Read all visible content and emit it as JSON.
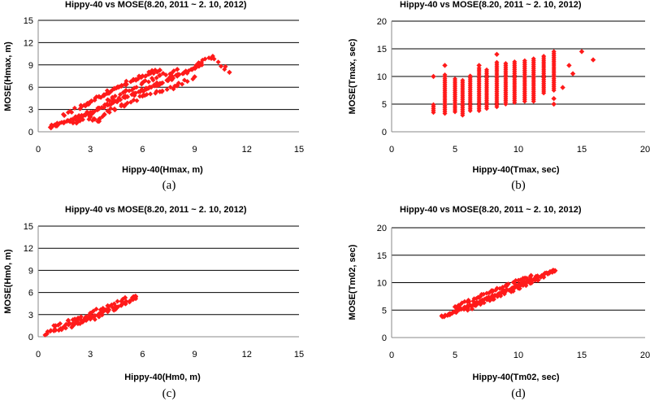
{
  "figure": {
    "captions": [
      "(a)",
      "(b)",
      "(c)",
      "(d)"
    ]
  },
  "colors": {
    "marker": "#ff1a1a",
    "grid": "#000000",
    "axis": "#888888"
  },
  "chart_data": [
    {
      "type": "scatter",
      "title": "Hippy-40 vs MOSE(8.20, 2011 ~ 2. 10, 2012)",
      "xlabel": "Hippy-40(Hmax, m)",
      "ylabel": "MOSE(Hmax, m)",
      "xlim": [
        0,
        15
      ],
      "ylim": [
        0,
        15
      ],
      "xticks": [
        0,
        3,
        6,
        9,
        12,
        15
      ],
      "yticks": [
        0,
        3,
        6,
        9,
        12,
        15
      ],
      "grid": "horizontal",
      "series": [
        {
          "marker": "diamond",
          "points": [
            [
              0.7,
              0.6
            ],
            [
              1,
              0.9
            ],
            [
              1.5,
              1.3
            ],
            [
              2,
              1.7
            ],
            [
              2.5,
              2.2
            ],
            [
              3,
              2.6
            ],
            [
              3.5,
              3.1
            ],
            [
              4,
              3.6
            ],
            [
              4.5,
              4.1
            ],
            [
              5,
              4.6
            ],
            [
              5.5,
              5
            ],
            [
              6,
              5.6
            ],
            [
              6.5,
              6
            ],
            [
              7,
              6.5
            ],
            [
              7.5,
              7
            ],
            [
              8,
              7.5
            ],
            [
              8.5,
              8.1
            ],
            [
              9,
              8.6
            ],
            [
              9.3,
              9.2
            ],
            [
              10,
              10
            ],
            [
              11,
              8
            ],
            [
              1.5,
              2.2
            ],
            [
              2.5,
              3.4
            ],
            [
              3,
              4
            ],
            [
              3.5,
              4.7
            ],
            [
              4,
              5.2
            ],
            [
              4.5,
              5.9
            ],
            [
              5,
              6.4
            ],
            [
              5.5,
              7
            ],
            [
              6,
              7.5
            ],
            [
              6.5,
              8
            ],
            [
              7,
              8.3
            ],
            [
              2,
              1.2
            ],
            [
              3,
              2
            ],
            [
              3.5,
              1.4
            ],
            [
              4,
              2.8
            ],
            [
              5,
              3.6
            ],
            [
              6,
              4.8
            ],
            [
              7,
              5.4
            ],
            [
              8,
              6.2
            ],
            [
              9,
              7.4
            ],
            [
              4,
              4.3
            ],
            [
              5,
              5.4
            ],
            [
              6,
              6.6
            ],
            [
              7,
              7.6
            ],
            [
              8,
              8.4
            ]
          ]
        }
      ]
    },
    {
      "type": "scatter",
      "title": "Hippy-40 vs MOSE(8.20, 2011 ~ 2. 10, 2012)",
      "xlabel": "Hippy-40(Tmax, sec)",
      "ylabel": "MOSE(Tmax, sec)",
      "xlim": [
        0,
        20
      ],
      "ylim": [
        0,
        20
      ],
      "xticks": [
        0,
        5,
        10,
        15,
        20
      ],
      "yticks": [
        0,
        5,
        10,
        15,
        20
      ],
      "grid": "horizontal",
      "series": [
        {
          "marker": "diamond",
          "columns": [
            {
              "x": 3.3,
              "y": [
                3.5,
                5.2
              ]
            },
            {
              "x": 4.2,
              "y": [
                3.3,
                10.5
              ]
            },
            {
              "x": 5,
              "y": [
                3.6,
                9.8
              ]
            },
            {
              "x": 5.6,
              "y": [
                3,
                9.5
              ]
            },
            {
              "x": 6.2,
              "y": [
                3.8,
                10.3
              ]
            },
            {
              "x": 6.9,
              "y": [
                3.8,
                11.5
              ]
            },
            {
              "x": 7.5,
              "y": [
                4.2,
                11.2
              ]
            },
            {
              "x": 8.3,
              "y": [
                4.5,
                12.7
              ]
            },
            {
              "x": 9,
              "y": [
                5,
                12.5
              ]
            },
            {
              "x": 9.7,
              "y": [
                5.3,
                12.8
              ]
            },
            {
              "x": 10.5,
              "y": [
                5.5,
                13
              ]
            },
            {
              "x": 11.2,
              "y": [
                5.5,
                13.5
              ]
            },
            {
              "x": 12,
              "y": [
                7,
                13.8
              ]
            },
            {
              "x": 12.8,
              "y": [
                7.5,
                14.8
              ]
            }
          ],
          "points": [
            [
              3.3,
              10
            ],
            [
              4.2,
              12
            ],
            [
              6.9,
              12
            ],
            [
              8.3,
              14
            ],
            [
              12.8,
              5
            ],
            [
              12.8,
              6
            ],
            [
              13.5,
              8
            ],
            [
              14.3,
              10.5
            ],
            [
              15,
              14.5
            ],
            [
              15.9,
              13
            ],
            [
              14,
              12
            ]
          ]
        }
      ]
    },
    {
      "type": "scatter",
      "title": "Hippy-40 vs MOSE(8.20, 2011 ~ 2. 10, 2012)",
      "xlabel": "Hippy-40(Hm0, m)",
      "ylabel": "MOSE(Hm0, m)",
      "xlim": [
        0,
        15
      ],
      "ylim": [
        0,
        15
      ],
      "xticks": [
        0,
        3,
        6,
        9,
        12,
        15
      ],
      "yticks": [
        0,
        3,
        6,
        9,
        12,
        15
      ],
      "grid": "horizontal",
      "series": [
        {
          "marker": "diamond",
          "points": [
            [
              0.5,
              0.4
            ],
            [
              1,
              0.9
            ],
            [
              1.5,
              1.3
            ],
            [
              2,
              1.8
            ],
            [
              2.5,
              2.2
            ],
            [
              3,
              2.7
            ],
            [
              3.5,
              3.1
            ],
            [
              4,
              3.6
            ],
            [
              4.5,
              4
            ],
            [
              5,
              4.5
            ],
            [
              5.5,
              5.2
            ],
            [
              5.6,
              5.5
            ],
            [
              1,
              1.5
            ],
            [
              2,
              2.3
            ],
            [
              3,
              3.2
            ],
            [
              4,
              4.2
            ],
            [
              5,
              5.3
            ],
            [
              2,
              1.5
            ],
            [
              3,
              2.4
            ],
            [
              4,
              3.4
            ]
          ]
        }
      ]
    },
    {
      "type": "scatter",
      "title": "Hippy-40 vs MOSE(8.20, 2011 ~ 2. 10, 2012)",
      "xlabel": "Hippy-40(Tm02, sec)",
      "ylabel": "MOSE(Tm02, sec)",
      "xlim": [
        0,
        20
      ],
      "ylim": [
        0,
        20
      ],
      "xticks": [
        0,
        5,
        10,
        15,
        20
      ],
      "yticks": [
        0,
        5,
        10,
        15,
        20
      ],
      "grid": "horizontal",
      "series": [
        {
          "marker": "diamond",
          "points": [
            [
              4,
              3.8
            ],
            [
              4.5,
              4.2
            ],
            [
              5,
              4.7
            ],
            [
              5.5,
              5.2
            ],
            [
              6,
              5.6
            ],
            [
              6.5,
              6.1
            ],
            [
              7,
              6.6
            ],
            [
              7.5,
              7
            ],
            [
              8,
              7.5
            ],
            [
              8.5,
              8
            ],
            [
              9,
              8.5
            ],
            [
              9.5,
              9
            ],
            [
              10,
              9.5
            ],
            [
              10.5,
              10
            ],
            [
              11,
              10.5
            ],
            [
              11.5,
              11
            ],
            [
              12,
              11.5
            ],
            [
              12.5,
              12
            ],
            [
              12.9,
              12.2
            ],
            [
              5,
              5.6
            ],
            [
              6,
              6.5
            ],
            [
              7,
              7.5
            ],
            [
              8,
              8.5
            ],
            [
              9,
              9.4
            ],
            [
              10,
              10.4
            ],
            [
              11,
              11.3
            ],
            [
              6,
              5
            ],
            [
              8,
              7
            ],
            [
              10,
              9
            ],
            [
              11,
              10
            ],
            [
              12,
              11
            ]
          ]
        }
      ]
    }
  ]
}
